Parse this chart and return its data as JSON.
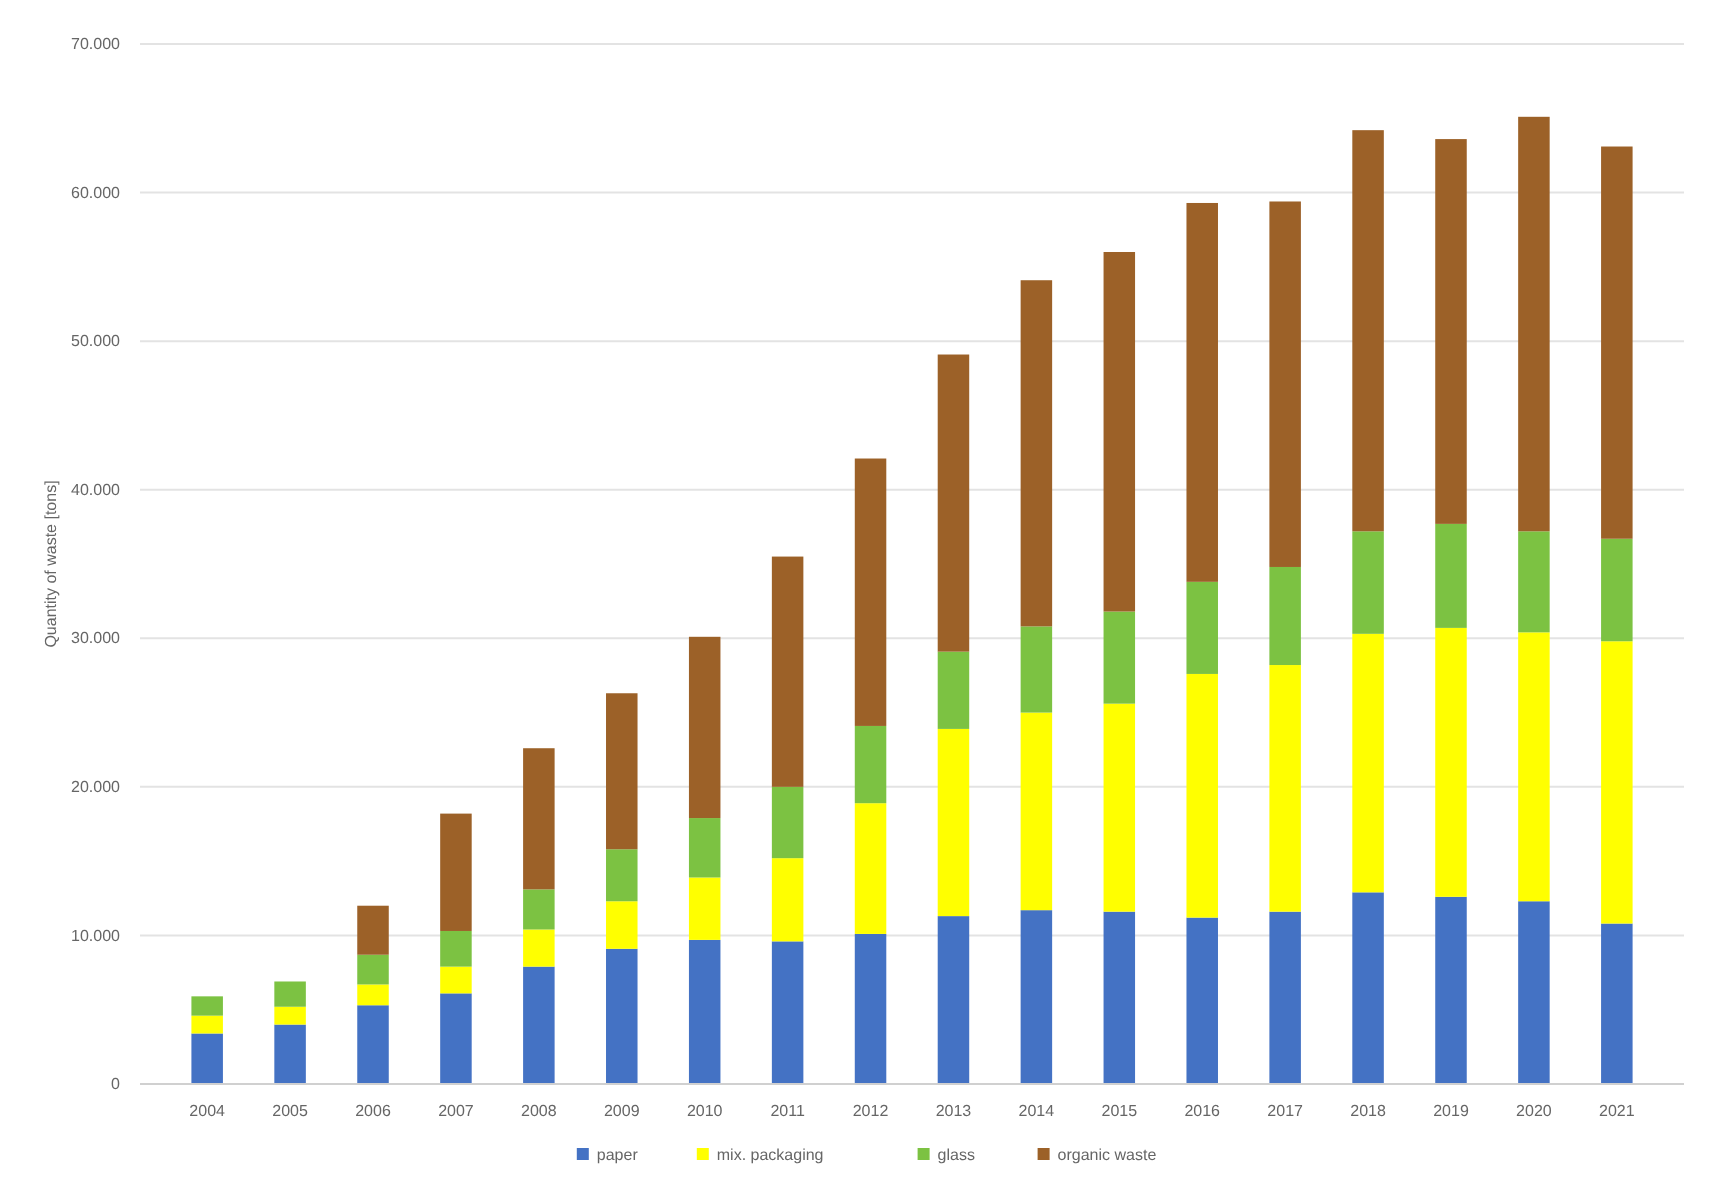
{
  "chart_data": {
    "type": "bar",
    "stacked": true,
    "ylabel": "Quantity of waste [tons]",
    "categories": [
      "2004",
      "2005",
      "2006",
      "2007",
      "2008",
      "2009",
      "2010",
      "2011",
      "2012",
      "2013",
      "2014",
      "2015",
      "2016",
      "2017",
      "2018",
      "2019",
      "2020",
      "2021"
    ],
    "series": [
      {
        "name": "paper",
        "color": "#4472c4",
        "values": [
          3400,
          4000,
          5300,
          6100,
          7900,
          9100,
          9700,
          9600,
          10100,
          11300,
          11700,
          11600,
          11200,
          11600,
          12900,
          12600,
          12300,
          10800
        ]
      },
      {
        "name": "mix. packaging",
        "color": "#ffff00",
        "values": [
          1200,
          1200,
          1400,
          1800,
          2500,
          3200,
          4200,
          5600,
          8800,
          12600,
          13300,
          14000,
          16400,
          16600,
          17400,
          18100,
          18100,
          19000
        ]
      },
      {
        "name": "glass",
        "color": "#7cc242",
        "values": [
          1300,
          1700,
          2000,
          2400,
          2700,
          3500,
          4000,
          4800,
          5200,
          5200,
          5800,
          6200,
          6200,
          6600,
          6900,
          7000,
          6800,
          6900
        ]
      },
      {
        "name": "organic waste",
        "color": "#9c6128",
        "values": [
          0,
          0,
          3300,
          7900,
          9500,
          10500,
          12200,
          15500,
          18000,
          20000,
          23300,
          24200,
          25500,
          24600,
          27000,
          25900,
          27900,
          26400
        ]
      }
    ],
    "ylim": [
      0,
      70000
    ],
    "yticks": [
      {
        "value": 0,
        "label": "0"
      },
      {
        "value": 10000,
        "label": "10.000"
      },
      {
        "value": 20000,
        "label": "20.000"
      },
      {
        "value": 30000,
        "label": "30.000"
      },
      {
        "value": 40000,
        "label": "40.000"
      },
      {
        "value": 50000,
        "label": "50.000"
      },
      {
        "value": 60000,
        "label": "60.000"
      },
      {
        "value": 70000,
        "label": "70.000"
      }
    ],
    "grid": "y",
    "legend": "bottom"
  }
}
